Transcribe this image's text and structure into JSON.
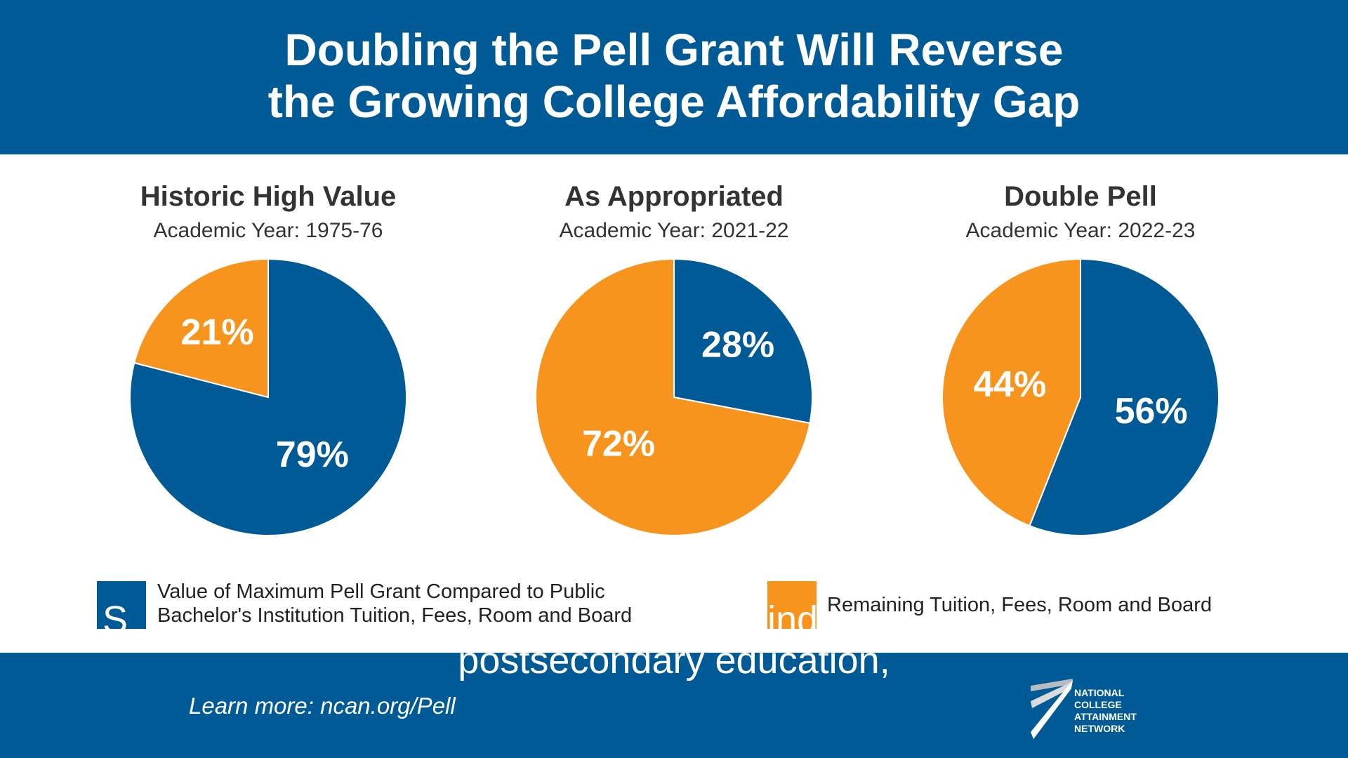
{
  "header": {
    "title_line1": "Doubling the Pell Grant Will Reverse",
    "title_line2": "the Growing College Affordability Gap"
  },
  "colors": {
    "blue": "#005a96",
    "orange": "#f7941d"
  },
  "chart_data": [
    {
      "type": "pie",
      "title": "Historic High Value",
      "subtitle": "Academic Year: 1975-76",
      "slices": [
        {
          "name": "Value of Maximum Pell Grant Compared to Public Bachelor's Institution Tuition, Fees, Room and Board",
          "value": 79,
          "label": "79%",
          "color": "#005a96"
        },
        {
          "name": "Remaining Tuition, Fees, Room and Board",
          "value": 21,
          "label": "21%",
          "color": "#f7941d"
        }
      ]
    },
    {
      "type": "pie",
      "title": "As Appropriated",
      "subtitle": "Academic Year: 2021-22",
      "slices": [
        {
          "name": "Value of Maximum Pell Grant Compared to Public Bachelor's Institution Tuition, Fees, Room and Board",
          "value": 28,
          "label": "28%",
          "color": "#005a96"
        },
        {
          "name": "Remaining Tuition, Fees, Room and Board",
          "value": 72,
          "label": "72%",
          "color": "#f7941d"
        }
      ]
    },
    {
      "type": "pie",
      "title": "Double Pell",
      "subtitle": "Academic Year: 2022-23",
      "slices": [
        {
          "name": "Value of Maximum Pell Grant Compared to Public Bachelor's Institution Tuition, Fees, Room and Board",
          "value": 56,
          "label": "56%",
          "color": "#005a96"
        },
        {
          "name": "Remaining Tuition, Fees, Room and Board",
          "value": 44,
          "label": "44%",
          "color": "#f7941d"
        }
      ]
    }
  ],
  "legend": {
    "blue_line1": "Value of Maximum Pell Grant Compared to Public",
    "blue_line2": "Bachelor's Institution Tuition, Fees, Room and Board",
    "orange": "Remaining Tuition, Fees, Room and Board"
  },
  "caption": {
    "fragment_left": "S",
    "fragment_right": "ind",
    "line": "postsecondary education,"
  },
  "footer": {
    "learn_more": "Learn more: ncan.org/Pell",
    "logo_text": "NATIONAL COLLEGE ATTAINMENT NETWORK"
  }
}
